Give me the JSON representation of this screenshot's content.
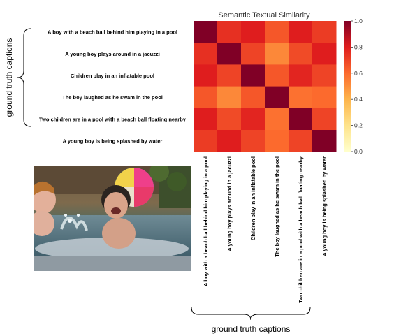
{
  "chart_data": {
    "type": "heatmap",
    "title": "Semantic Textual Similarity",
    "row_labels": [
      "A boy with a beach ball behind him playing in a pool",
      "A young boy plays around in a jacuzzi",
      "Children play in an inflatable pool",
      "The boy laughed as he swam in the pool",
      "Two children are in a pool with a beach ball floating nearby",
      "A young boy is being splashed by water"
    ],
    "col_labels": [
      "A boy with a beach ball behind him playing in a pool",
      "A young boy plays around in a jacuzzi",
      "Children play in an inflatable pool",
      "The boy laughed as he swam in the pool",
      "Two children are in a pool with a beach ball floating nearby",
      "A young boy is being splashed by water"
    ],
    "values": [
      [
        1.0,
        0.75,
        0.8,
        0.65,
        0.8,
        0.72
      ],
      [
        0.75,
        1.0,
        0.7,
        0.52,
        0.68,
        0.8
      ],
      [
        0.8,
        0.7,
        1.0,
        0.65,
        0.78,
        0.7
      ],
      [
        0.65,
        0.52,
        0.65,
        1.0,
        0.58,
        0.6
      ],
      [
        0.8,
        0.68,
        0.78,
        0.58,
        1.0,
        0.7
      ],
      [
        0.72,
        0.8,
        0.7,
        0.6,
        0.7,
        1.0
      ]
    ],
    "colorbar": {
      "min": 0.0,
      "max": 1.0,
      "ticks": [
        "1.0",
        "0.8",
        "0.6",
        "0.4",
        "0.2",
        "0.0"
      ],
      "colormap": "YlOrRd"
    },
    "ylabel": "ground truth captions",
    "xlabel": "ground truth captions"
  }
}
